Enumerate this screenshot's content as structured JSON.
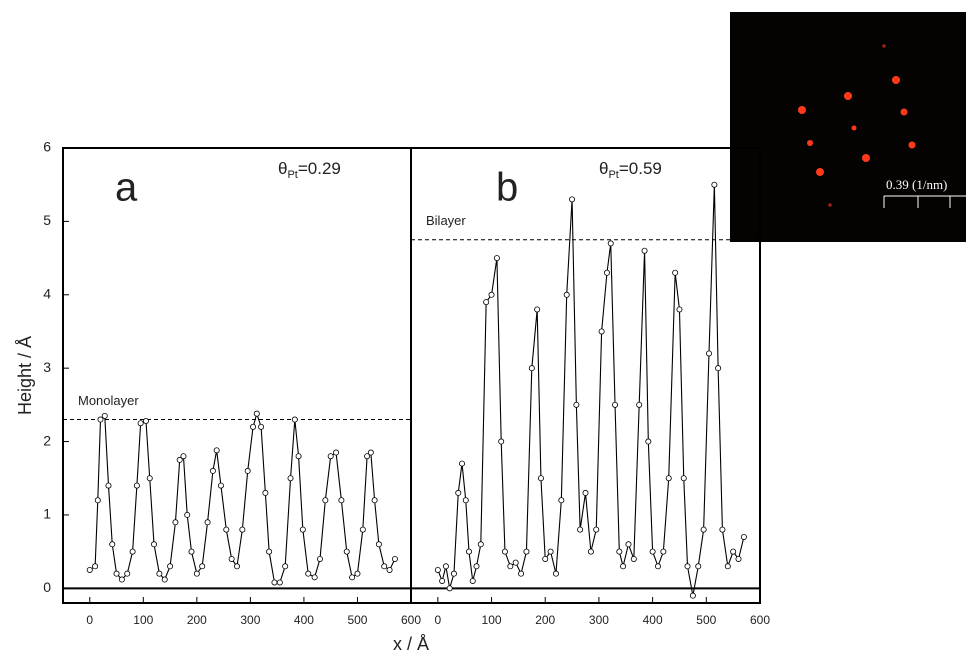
{
  "chart_data": [
    {
      "type": "line",
      "title": "a",
      "annotation": {
        "symbol": "θ",
        "subscript": "Pt",
        "text": "=0.29"
      },
      "ylabel": "Height / Å",
      "xlabel": "x / Å",
      "reference_line": {
        "label": "Monolayer",
        "value": 2.3
      },
      "xlim": [
        -50,
        600
      ],
      "ylim": [
        -0.2,
        6
      ],
      "xticks": [
        0,
        100,
        200,
        300,
        400,
        500,
        600
      ],
      "yticks": [
        0,
        1,
        2,
        3,
        4,
        5,
        6
      ],
      "x": [
        0,
        10,
        15,
        20,
        28,
        35,
        42,
        50,
        60,
        70,
        80,
        88,
        95,
        105,
        112,
        120,
        130,
        140,
        150,
        160,
        168,
        175,
        182,
        190,
        200,
        210,
        220,
        230,
        237,
        245,
        255,
        265,
        275,
        285,
        295,
        305,
        312,
        320,
        328,
        335,
        345,
        355,
        365,
        375,
        383,
        390,
        398,
        408,
        420,
        430,
        440,
        450,
        460,
        470,
        480,
        490,
        500,
        510,
        518,
        525,
        532,
        540,
        550,
        560,
        570
      ],
      "series": [
        {
          "color": "#000000",
          "values": [
            0.25,
            0.3,
            1.2,
            2.3,
            2.35,
            1.4,
            0.6,
            0.2,
            0.12,
            0.2,
            0.5,
            1.4,
            2.25,
            2.28,
            1.5,
            0.6,
            0.2,
            0.12,
            0.3,
            0.9,
            1.75,
            1.8,
            1.0,
            0.5,
            0.2,
            0.3,
            0.9,
            1.6,
            1.88,
            1.4,
            0.8,
            0.4,
            0.3,
            0.8,
            1.6,
            2.2,
            2.38,
            2.2,
            1.3,
            0.5,
            0.08,
            0.08,
            0.3,
            1.5,
            2.3,
            1.8,
            0.8,
            0.2,
            0.15,
            0.4,
            1.2,
            1.8,
            1.85,
            1.2,
            0.5,
            0.15,
            0.2,
            0.8,
            1.8,
            1.85,
            1.2,
            0.6,
            0.3,
            0.25,
            0.4
          ]
        }
      ]
    },
    {
      "type": "line",
      "title": "b",
      "annotation": {
        "symbol": "θ",
        "subscript": "Pt",
        "text": "=0.59"
      },
      "reference_line": {
        "label": "Bilayer",
        "value": 4.75
      },
      "xlim": [
        -50,
        600
      ],
      "ylim": [
        -0.2,
        6
      ],
      "xticks": [
        0,
        100,
        200,
        300,
        400,
        500,
        600
      ],
      "x": [
        0,
        8,
        15,
        22,
        30,
        38,
        45,
        52,
        58,
        65,
        72,
        80,
        90,
        100,
        110,
        118,
        125,
        135,
        145,
        155,
        165,
        175,
        185,
        192,
        200,
        210,
        220,
        230,
        240,
        250,
        258,
        265,
        275,
        285,
        295,
        305,
        315,
        322,
        330,
        338,
        345,
        355,
        365,
        375,
        385,
        392,
        400,
        410,
        420,
        430,
        442,
        450,
        458,
        465,
        475,
        485,
        495,
        505,
        515,
        522,
        530,
        540,
        550,
        560,
        570
      ],
      "series": [
        {
          "color": "#000000",
          "values": [
            0.25,
            0.1,
            0.3,
            0.0,
            0.2,
            1.3,
            1.7,
            1.2,
            0.5,
            0.1,
            0.3,
            0.6,
            3.9,
            4.0,
            4.5,
            2.0,
            0.5,
            0.3,
            0.35,
            0.2,
            0.5,
            3.0,
            3.8,
            1.5,
            0.4,
            0.5,
            0.2,
            1.2,
            4.0,
            5.3,
            2.5,
            0.8,
            1.3,
            0.5,
            0.8,
            3.5,
            4.3,
            4.7,
            2.5,
            0.5,
            0.3,
            0.6,
            0.4,
            2.5,
            4.6,
            2.0,
            0.5,
            0.3,
            0.5,
            1.5,
            4.3,
            3.8,
            1.5,
            0.3,
            -0.1,
            0.3,
            0.8,
            3.2,
            5.5,
            3.0,
            0.8,
            0.3,
            0.5,
            0.4,
            0.7
          ]
        }
      ]
    }
  ],
  "inset": {
    "scale_label": "0.39 (1/nm)"
  }
}
